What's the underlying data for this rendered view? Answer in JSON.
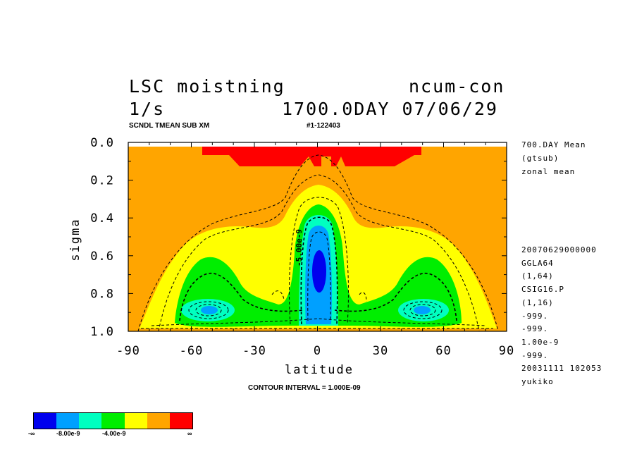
{
  "titles": {
    "left1": "LSC moistning",
    "right1": "ncum-con",
    "left2": "1/s",
    "right2": "1700.0DAY 07/06/29",
    "sub_left": "SCNDL TMEAN SUB XM",
    "sub_right": "#1-122403"
  },
  "side_info": {
    "top": [
      "700.DAY Mean",
      "(gtsub)",
      "zonal mean"
    ],
    "bottom": [
      "20070629000000",
      "GGLA64",
      "(1,64)",
      "CSIG16.P",
      "(1,16)",
      "-999.",
      "-999.",
      "1.00e-9",
      "-999.",
      "20031111 102053",
      "yukiko"
    ]
  },
  "contour_interval": "CONTOUR INTERVAL = 1.000E-09",
  "contour_label": "-5.00e-9",
  "colorbar": {
    "colors": [
      "#0000ee",
      "#00a0ff",
      "#00ffc0",
      "#00ee00",
      "#ffff00",
      "#ffa500",
      "#ff0000"
    ],
    "labels": [
      "-∞",
      "-8.00e-9",
      "-4.00e-9",
      "∞"
    ]
  },
  "chart_data": {
    "type": "heatmap",
    "title": "LSC moistning",
    "xlabel": "latitude",
    "ylabel": "sigma",
    "xlim": [
      -90,
      90
    ],
    "ylim": [
      1.0,
      0.0
    ],
    "xticks": [
      -90,
      -60,
      -30,
      0,
      30,
      60,
      90
    ],
    "xtick_labels": [
      "-90",
      "-60",
      "-30",
      "0",
      "30",
      "60",
      "90"
    ],
    "yticks": [
      0.0,
      0.2,
      0.4,
      0.6,
      0.8,
      1.0
    ],
    "ytick_labels": [
      "0.0",
      "0.2",
      "0.4",
      "0.6",
      "0.8",
      "1.0"
    ],
    "units": "1/s",
    "contour_interval": 1e-09,
    "features": [
      {
        "name": "equatorial minimum",
        "lat": 0,
        "sigma": 0.68,
        "level": "< -8.00e-9"
      },
      {
        "name": "southern minimum",
        "lat": -52,
        "sigma": 0.88,
        "level": "-8.00e-9 to -4.00e-9"
      },
      {
        "name": "northern minimum",
        "lat": 50,
        "sigma": 0.88,
        "level": "-8.00e-9 to -4.00e-9"
      },
      {
        "name": "upper positive band",
        "lat_range": [
          -55,
          50
        ],
        "sigma_range": [
          0.02,
          0.12
        ],
        "level": "> 0"
      }
    ]
  }
}
